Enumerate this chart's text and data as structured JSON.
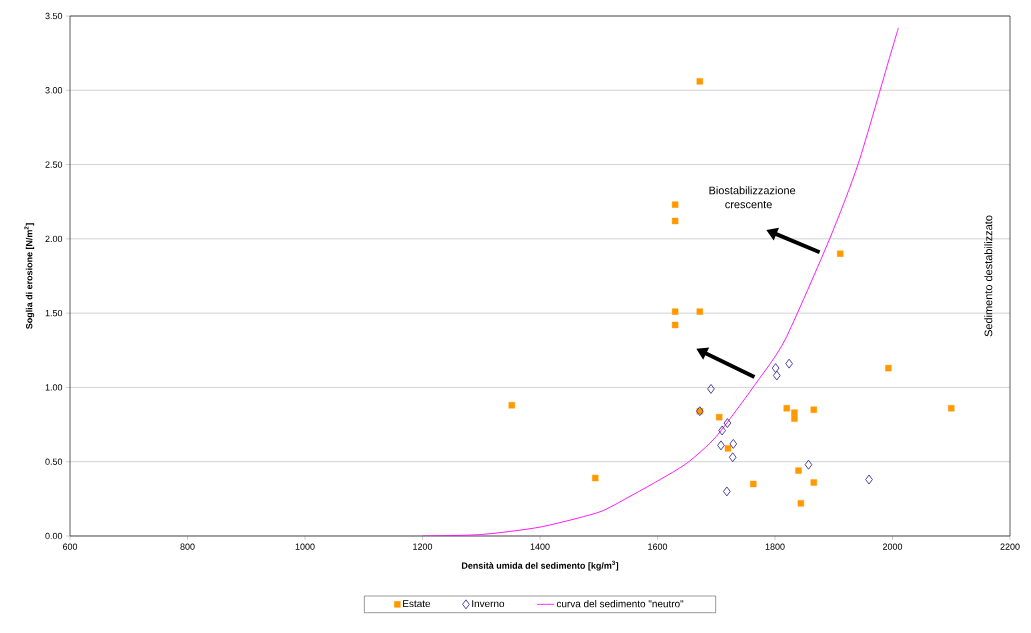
{
  "chart_data": {
    "type": "scatter",
    "xlabel": "Densità umida del sedimento [kg/m$^{3}$]",
    "ylabel": "Soglia di erosione [N/m$^{2}$]",
    "xlim": [
      600,
      2200
    ],
    "ylim": [
      0,
      3.5
    ],
    "xticks": [
      600,
      800,
      1000,
      1200,
      1400,
      1600,
      1800,
      2000,
      2200
    ],
    "yticks": [
      {
        "value": 0,
        "label": "0.00"
      },
      {
        "value": 0.5,
        "label": "0.50"
      },
      {
        "value": 1,
        "label": "1.00"
      },
      {
        "value": 1.5,
        "label": "1.50"
      },
      {
        "value": 2,
        "label": "2.00"
      },
      {
        "value": 2.5,
        "label": "2.50"
      },
      {
        "value": 3,
        "label": "3.00"
      },
      {
        "value": 3.5,
        "label": "3.50"
      }
    ],
    "grid": "y",
    "legend": "bottom",
    "annotations": [
      "Biostabilizzazione crescente",
      "Sedimento destabilizzato"
    ],
    "series": [
      {
        "name": "Estate",
        "color": "#ff9900",
        "marker": "square",
        "x": [
          1672,
          1630,
          1630,
          1630,
          1672,
          1630,
          1911,
          1352,
          1993,
          1494,
          1672,
          1705,
          1720,
          1763,
          1820,
          1833,
          1833,
          1866,
          1840,
          1866,
          1844,
          2100
        ],
        "values": [
          3.06,
          2.23,
          2.12,
          1.51,
          1.51,
          1.42,
          1.9,
          0.88,
          1.13,
          0.39,
          0.84,
          0.8,
          0.59,
          0.35,
          0.86,
          0.83,
          0.79,
          0.85,
          0.44,
          0.36,
          0.22,
          0.86
        ]
      },
      {
        "name": "Inverno",
        "color": "#333399",
        "marker": "diamond",
        "x": [
          1801,
          1824,
          1803,
          1691,
          1672,
          1719,
          1710,
          1708,
          1729,
          1728,
          1718,
          1857,
          1960
        ],
        "values": [
          1.13,
          1.16,
          1.08,
          0.99,
          0.84,
          0.76,
          0.71,
          0.61,
          0.62,
          0.53,
          0.3,
          0.48,
          0.38
        ]
      },
      {
        "name": "curva del sedimento \"neutro\"",
        "type": "line",
        "color": "#ff00ff",
        "marker": "none",
        "x": [
          1200,
          1300,
          1400,
          1500,
          1550,
          1600,
          1650,
          1700,
          1768,
          1817,
          1893,
          1942,
          1995,
          2010
        ],
        "values": [
          0,
          0.01,
          0.06,
          0.16,
          0.26,
          0.37,
          0.49,
          0.67,
          1.03,
          1.32,
          2.0,
          2.51,
          3.22,
          3.42
        ]
      }
    ]
  }
}
